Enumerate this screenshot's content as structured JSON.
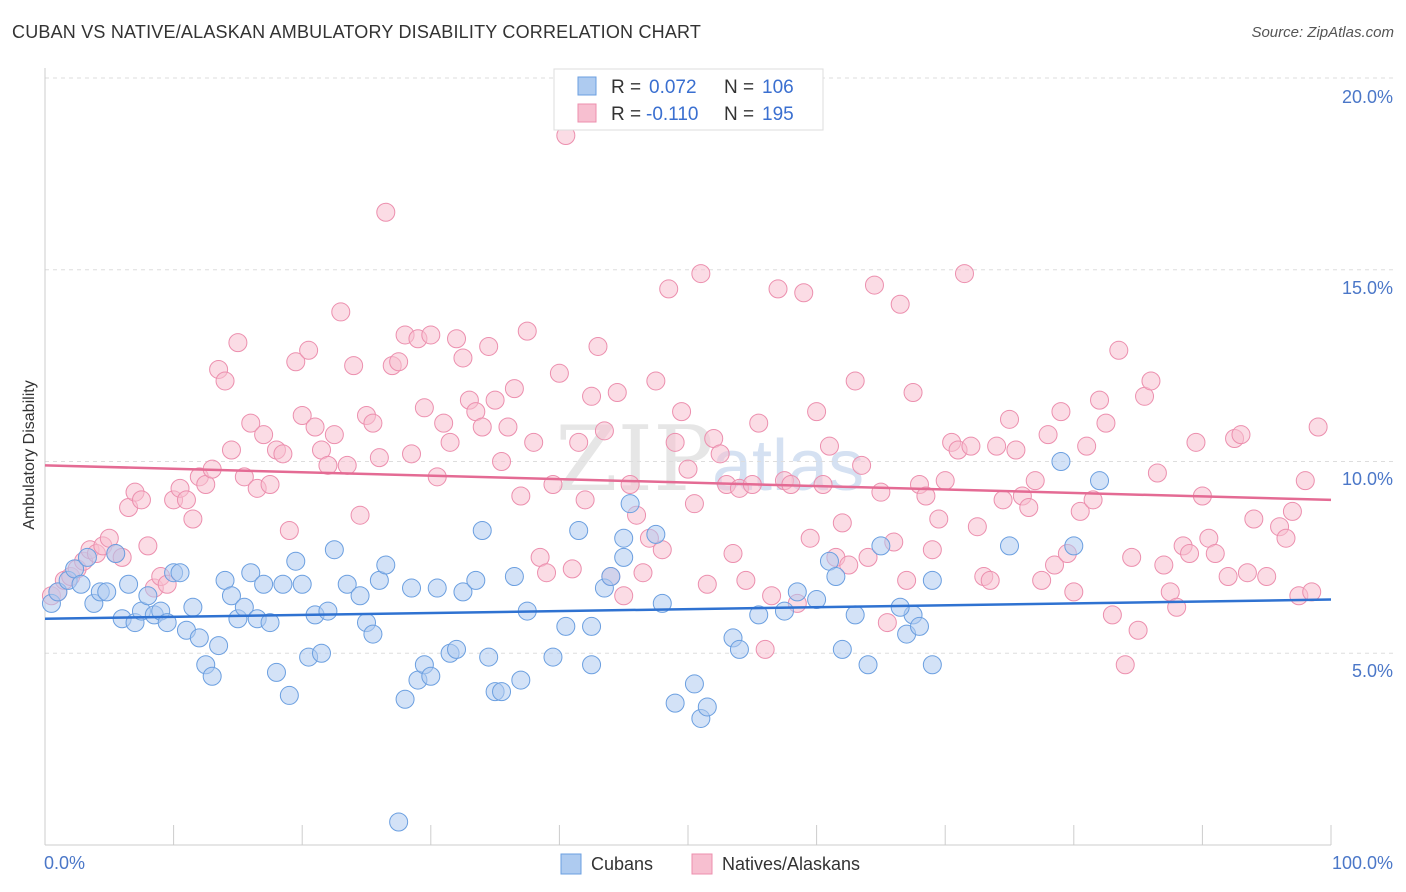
{
  "title": "CUBAN VS NATIVE/ALASKAN AMBULATORY DISABILITY CORRELATION CHART",
  "source": "Source: ZipAtlas.com",
  "watermark": {
    "part1": "ZIP",
    "part2": "atlas"
  },
  "colors": {
    "cubans_fill": "#aecbf0",
    "cubans_stroke": "#6b9fe0",
    "cubans_line": "#2f72d1",
    "natives_fill": "#f7bfd0",
    "natives_stroke": "#ec8fae",
    "natives_line": "#e46b94",
    "grid": "#dddddd",
    "tick_label": "#4b77c8"
  },
  "legend": {
    "rows": [
      {
        "r_label": "R =",
        "r_value": "0.072",
        "n_label": "N =",
        "n_value": "106"
      },
      {
        "r_label": "R =",
        "r_value": "-0.110",
        "n_label": "N =",
        "n_value": "195"
      }
    ]
  },
  "bottom_legend": {
    "cubans": "Cubans",
    "natives": "Natives/Alaskans"
  },
  "chart_data": {
    "type": "scatter",
    "title": "CUBAN VS NATIVE/ALASKAN AMBULATORY DISABILITY CORRELATION CHART",
    "xlabel": "",
    "ylabel": "Ambulatory Disability",
    "xlim": [
      0,
      100
    ],
    "ylim": [
      0,
      20
    ],
    "x_tick_labels": [
      "0.0%",
      "100.0%"
    ],
    "y_ticks": [
      5,
      10,
      15,
      20
    ],
    "y_tick_labels": [
      "5.0%",
      "10.0%",
      "15.0%",
      "20.0%"
    ],
    "series": [
      {
        "name": "Cubans",
        "R": 0.072,
        "N": 106,
        "trend": {
          "x": [
            0,
            100
          ],
          "y": [
            5.9,
            6.4
          ]
        },
        "points": [
          [
            0.5,
            6.3
          ],
          [
            1,
            6.6
          ],
          [
            1.8,
            6.9
          ],
          [
            2.3,
            7.2
          ],
          [
            2.8,
            6.8
          ],
          [
            3.3,
            7.5
          ],
          [
            3.8,
            6.3
          ],
          [
            4.3,
            6.6
          ],
          [
            4.8,
            6.6
          ],
          [
            5.5,
            7.6
          ],
          [
            6,
            5.9
          ],
          [
            6.5,
            6.8
          ],
          [
            7,
            5.8
          ],
          [
            7.5,
            6.1
          ],
          [
            8,
            6.5
          ],
          [
            8.5,
            6.0
          ],
          [
            9,
            6.1
          ],
          [
            9.5,
            5.8
          ],
          [
            10,
            7.1
          ],
          [
            10.5,
            7.1
          ],
          [
            11,
            5.6
          ],
          [
            11.5,
            6.2
          ],
          [
            12,
            5.4
          ],
          [
            12.5,
            4.7
          ],
          [
            13,
            4.4
          ],
          [
            13.5,
            5.2
          ],
          [
            14,
            6.9
          ],
          [
            14.5,
            6.5
          ],
          [
            15,
            5.9
          ],
          [
            15.5,
            6.2
          ],
          [
            16,
            7.1
          ],
          [
            16.5,
            5.9
          ],
          [
            17,
            6.8
          ],
          [
            17.5,
            5.8
          ],
          [
            18,
            4.5
          ],
          [
            18.5,
            6.8
          ],
          [
            19,
            3.9
          ],
          [
            19.5,
            7.4
          ],
          [
            20,
            6.8
          ],
          [
            20.5,
            4.9
          ],
          [
            21,
            6.0
          ],
          [
            21.5,
            5.0
          ],
          [
            22,
            6.1
          ],
          [
            22.5,
            7.7
          ],
          [
            23.5,
            6.8
          ],
          [
            24.5,
            6.5
          ],
          [
            25,
            5.8
          ],
          [
            25.5,
            5.5
          ],
          [
            26,
            6.9
          ],
          [
            26.5,
            7.3
          ],
          [
            27.5,
            0.6
          ],
          [
            28,
            3.8
          ],
          [
            28.5,
            6.7
          ],
          [
            29,
            4.3
          ],
          [
            29.5,
            4.7
          ],
          [
            30,
            4.4
          ],
          [
            30.5,
            6.7
          ],
          [
            31.5,
            5.0
          ],
          [
            32,
            5.1
          ],
          [
            32.5,
            6.6
          ],
          [
            33.5,
            6.9
          ],
          [
            34,
            8.2
          ],
          [
            34.5,
            4.9
          ],
          [
            35,
            4.0
          ],
          [
            35.5,
            4.0
          ],
          [
            36.5,
            7.0
          ],
          [
            37,
            4.3
          ],
          [
            37.5,
            6.1
          ],
          [
            39.5,
            4.9
          ],
          [
            40.5,
            5.7
          ],
          [
            41.5,
            8.2
          ],
          [
            42.5,
            4.7
          ],
          [
            42.5,
            5.7
          ],
          [
            43.5,
            6.7
          ],
          [
            44,
            7.0
          ],
          [
            45,
            8.0
          ],
          [
            45,
            7.5
          ],
          [
            45.5,
            8.9
          ],
          [
            48,
            6.3
          ],
          [
            49,
            3.7
          ],
          [
            50.5,
            4.2
          ],
          [
            51,
            3.3
          ],
          [
            51.5,
            3.6
          ],
          [
            53.5,
            5.4
          ],
          [
            54,
            5.1
          ],
          [
            55.5,
            6.0
          ],
          [
            57.5,
            6.1
          ],
          [
            58.5,
            6.6
          ],
          [
            60,
            6.4
          ],
          [
            61,
            7.4
          ],
          [
            61.5,
            7.0
          ],
          [
            62,
            5.1
          ],
          [
            63,
            6.0
          ],
          [
            64,
            4.7
          ],
          [
            65,
            7.8
          ],
          [
            67,
            5.5
          ],
          [
            67.5,
            6.0
          ],
          [
            68,
            5.7
          ],
          [
            69,
            6.9
          ],
          [
            69,
            4.7
          ],
          [
            75,
            7.8
          ],
          [
            79,
            10.0
          ],
          [
            80,
            7.8
          ],
          [
            82,
            9.5
          ],
          [
            66.5,
            6.2
          ],
          [
            47.5,
            8.1
          ]
        ]
      },
      {
        "name": "Natives/Alaskans",
        "R": -0.11,
        "N": 195,
        "trend": {
          "x": [
            0,
            100
          ],
          "y": [
            9.9,
            9.0
          ]
        },
        "points": [
          [
            0.5,
            6.5
          ],
          [
            1,
            6.6
          ],
          [
            1.5,
            6.9
          ],
          [
            2,
            7.0
          ],
          [
            2.5,
            7.2
          ],
          [
            3,
            7.4
          ],
          [
            3.5,
            7.7
          ],
          [
            4,
            7.6
          ],
          [
            4.5,
            7.8
          ],
          [
            5,
            8.0
          ],
          [
            5.5,
            7.6
          ],
          [
            6,
            7.5
          ],
          [
            6.5,
            8.8
          ],
          [
            7,
            9.2
          ],
          [
            7.5,
            9.0
          ],
          [
            8,
            7.8
          ],
          [
            8.5,
            6.7
          ],
          [
            9,
            7.0
          ],
          [
            9.5,
            6.8
          ],
          [
            10,
            9.0
          ],
          [
            10.5,
            9.3
          ],
          [
            11,
            9.0
          ],
          [
            11.5,
            8.5
          ],
          [
            12,
            9.6
          ],
          [
            12.5,
            9.4
          ],
          [
            13,
            9.8
          ],
          [
            13.5,
            12.4
          ],
          [
            14,
            12.1
          ],
          [
            14.5,
            10.3
          ],
          [
            15,
            13.1
          ],
          [
            15.5,
            9.6
          ],
          [
            16,
            11.0
          ],
          [
            16.5,
            9.3
          ],
          [
            17,
            10.7
          ],
          [
            17.5,
            9.4
          ],
          [
            18,
            10.3
          ],
          [
            18.5,
            10.2
          ],
          [
            19,
            8.2
          ],
          [
            19.5,
            12.6
          ],
          [
            20,
            11.2
          ],
          [
            20.5,
            12.9
          ],
          [
            21,
            10.9
          ],
          [
            21.5,
            10.3
          ],
          [
            22,
            9.9
          ],
          [
            22.5,
            10.7
          ],
          [
            23,
            13.9
          ],
          [
            23.5,
            9.9
          ],
          [
            24,
            12.5
          ],
          [
            24.5,
            8.6
          ],
          [
            25,
            11.2
          ],
          [
            25.5,
            11.0
          ],
          [
            26,
            10.1
          ],
          [
            26.5,
            16.5
          ],
          [
            27,
            12.5
          ],
          [
            27.5,
            12.6
          ],
          [
            28,
            13.3
          ],
          [
            28.5,
            10.2
          ],
          [
            29,
            13.2
          ],
          [
            29.5,
            11.4
          ],
          [
            30,
            13.3
          ],
          [
            30.5,
            9.6
          ],
          [
            31,
            11.0
          ],
          [
            31.5,
            10.5
          ],
          [
            32,
            13.2
          ],
          [
            32.5,
            12.7
          ],
          [
            33,
            11.6
          ],
          [
            33.5,
            11.3
          ],
          [
            34,
            10.9
          ],
          [
            34.5,
            13.0
          ],
          [
            35,
            11.6
          ],
          [
            35.5,
            10.0
          ],
          [
            36,
            10.9
          ],
          [
            36.5,
            11.9
          ],
          [
            37,
            9.1
          ],
          [
            37.5,
            13.4
          ],
          [
            38,
            10.5
          ],
          [
            38.5,
            7.5
          ],
          [
            39,
            7.1
          ],
          [
            39.5,
            9.4
          ],
          [
            40,
            12.3
          ],
          [
            40.5,
            18.5
          ],
          [
            41,
            7.2
          ],
          [
            41.5,
            10.5
          ],
          [
            42,
            9.0
          ],
          [
            42.5,
            11.7
          ],
          [
            43,
            13.0
          ],
          [
            43.5,
            10.8
          ],
          [
            44,
            7.0
          ],
          [
            44.5,
            11.8
          ],
          [
            45,
            6.5
          ],
          [
            45.5,
            9.4
          ],
          [
            46,
            8.6
          ],
          [
            46.5,
            7.1
          ],
          [
            47,
            8.0
          ],
          [
            47.5,
            12.1
          ],
          [
            48,
            7.7
          ],
          [
            48.5,
            14.5
          ],
          [
            49,
            10.5
          ],
          [
            49.5,
            11.3
          ],
          [
            50,
            9.8
          ],
          [
            50.5,
            8.9
          ],
          [
            51,
            14.9
          ],
          [
            51.5,
            6.8
          ],
          [
            52,
            10.6
          ],
          [
            52.5,
            10.2
          ],
          [
            53,
            9.4
          ],
          [
            53.5,
            7.6
          ],
          [
            54,
            9.3
          ],
          [
            54.5,
            6.9
          ],
          [
            55,
            9.4
          ],
          [
            55.5,
            11.0
          ],
          [
            56,
            5.1
          ],
          [
            56.5,
            6.5
          ],
          [
            57,
            14.5
          ],
          [
            57.5,
            9.5
          ],
          [
            58,
            9.4
          ],
          [
            58.5,
            6.3
          ],
          [
            59,
            14.4
          ],
          [
            59.5,
            8.0
          ],
          [
            60,
            11.3
          ],
          [
            60.5,
            9.4
          ],
          [
            61,
            10.4
          ],
          [
            61.5,
            7.5
          ],
          [
            62,
            8.4
          ],
          [
            62.5,
            7.3
          ],
          [
            63,
            12.1
          ],
          [
            63.5,
            9.9
          ],
          [
            64,
            7.5
          ],
          [
            64.5,
            14.6
          ],
          [
            65,
            9.2
          ],
          [
            65.5,
            5.8
          ],
          [
            66,
            7.9
          ],
          [
            66.5,
            14.1
          ],
          [
            67,
            6.9
          ],
          [
            67.5,
            11.8
          ],
          [
            68,
            9.4
          ],
          [
            68.5,
            9.1
          ],
          [
            69,
            7.7
          ],
          [
            69.5,
            8.5
          ],
          [
            70,
            9.5
          ],
          [
            70.5,
            10.5
          ],
          [
            71,
            10.3
          ],
          [
            71.5,
            14.9
          ],
          [
            72,
            10.4
          ],
          [
            72.5,
            8.3
          ],
          [
            73,
            7.0
          ],
          [
            73.5,
            6.9
          ],
          [
            74,
            10.4
          ],
          [
            74.5,
            9.0
          ],
          [
            75,
            11.1
          ],
          [
            75.5,
            10.3
          ],
          [
            76,
            9.1
          ],
          [
            76.5,
            8.8
          ],
          [
            77,
            9.5
          ],
          [
            77.5,
            6.9
          ],
          [
            78,
            10.7
          ],
          [
            78.5,
            7.3
          ],
          [
            79,
            11.3
          ],
          [
            79.5,
            7.6
          ],
          [
            80,
            6.6
          ],
          [
            80.5,
            8.7
          ],
          [
            81,
            10.4
          ],
          [
            81.5,
            9.0
          ],
          [
            82,
            11.6
          ],
          [
            82.5,
            11.0
          ],
          [
            83,
            6.0
          ],
          [
            83.5,
            12.9
          ],
          [
            84,
            4.7
          ],
          [
            84.5,
            7.5
          ],
          [
            85,
            5.6
          ],
          [
            85.5,
            11.7
          ],
          [
            86,
            12.1
          ],
          [
            86.5,
            9.7
          ],
          [
            87,
            7.3
          ],
          [
            87.5,
            6.6
          ],
          [
            88,
            6.2
          ],
          [
            88.5,
            7.8
          ],
          [
            89,
            7.6
          ],
          [
            89.5,
            10.5
          ],
          [
            90,
            9.1
          ],
          [
            90.5,
            8.0
          ],
          [
            91,
            7.6
          ],
          [
            92,
            7.0
          ],
          [
            92.5,
            10.6
          ],
          [
            93,
            10.7
          ],
          [
            93.5,
            7.1
          ],
          [
            94,
            8.5
          ],
          [
            95,
            7.0
          ],
          [
            96,
            8.3
          ],
          [
            96.5,
            8.0
          ],
          [
            97,
            8.7
          ],
          [
            97.5,
            6.5
          ],
          [
            98,
            9.5
          ],
          [
            98.5,
            6.6
          ],
          [
            99,
            10.9
          ]
        ]
      }
    ]
  }
}
